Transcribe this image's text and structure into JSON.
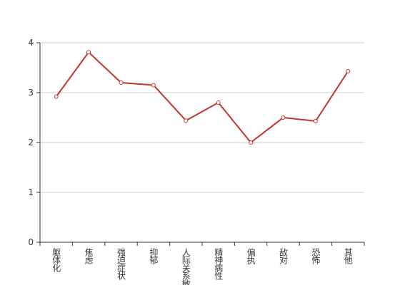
{
  "chart_data": {
    "type": "line",
    "categories": [
      "躯体化",
      "焦虑",
      "强迫症状",
      "抑郁",
      "人际关系敏感",
      "精神病性",
      "偏执",
      "敌对",
      "恐怖",
      "其他"
    ],
    "series": [
      {
        "color": "#c23531",
        "values": [
          2.92,
          3.81,
          3.2,
          3.15,
          2.44,
          2.8,
          2.0,
          2.5,
          2.43,
          3.43
        ]
      }
    ],
    "ylim": [
      0,
      4
    ],
    "yticks": [
      0,
      1,
      2,
      3,
      4
    ],
    "grid": true
  }
}
